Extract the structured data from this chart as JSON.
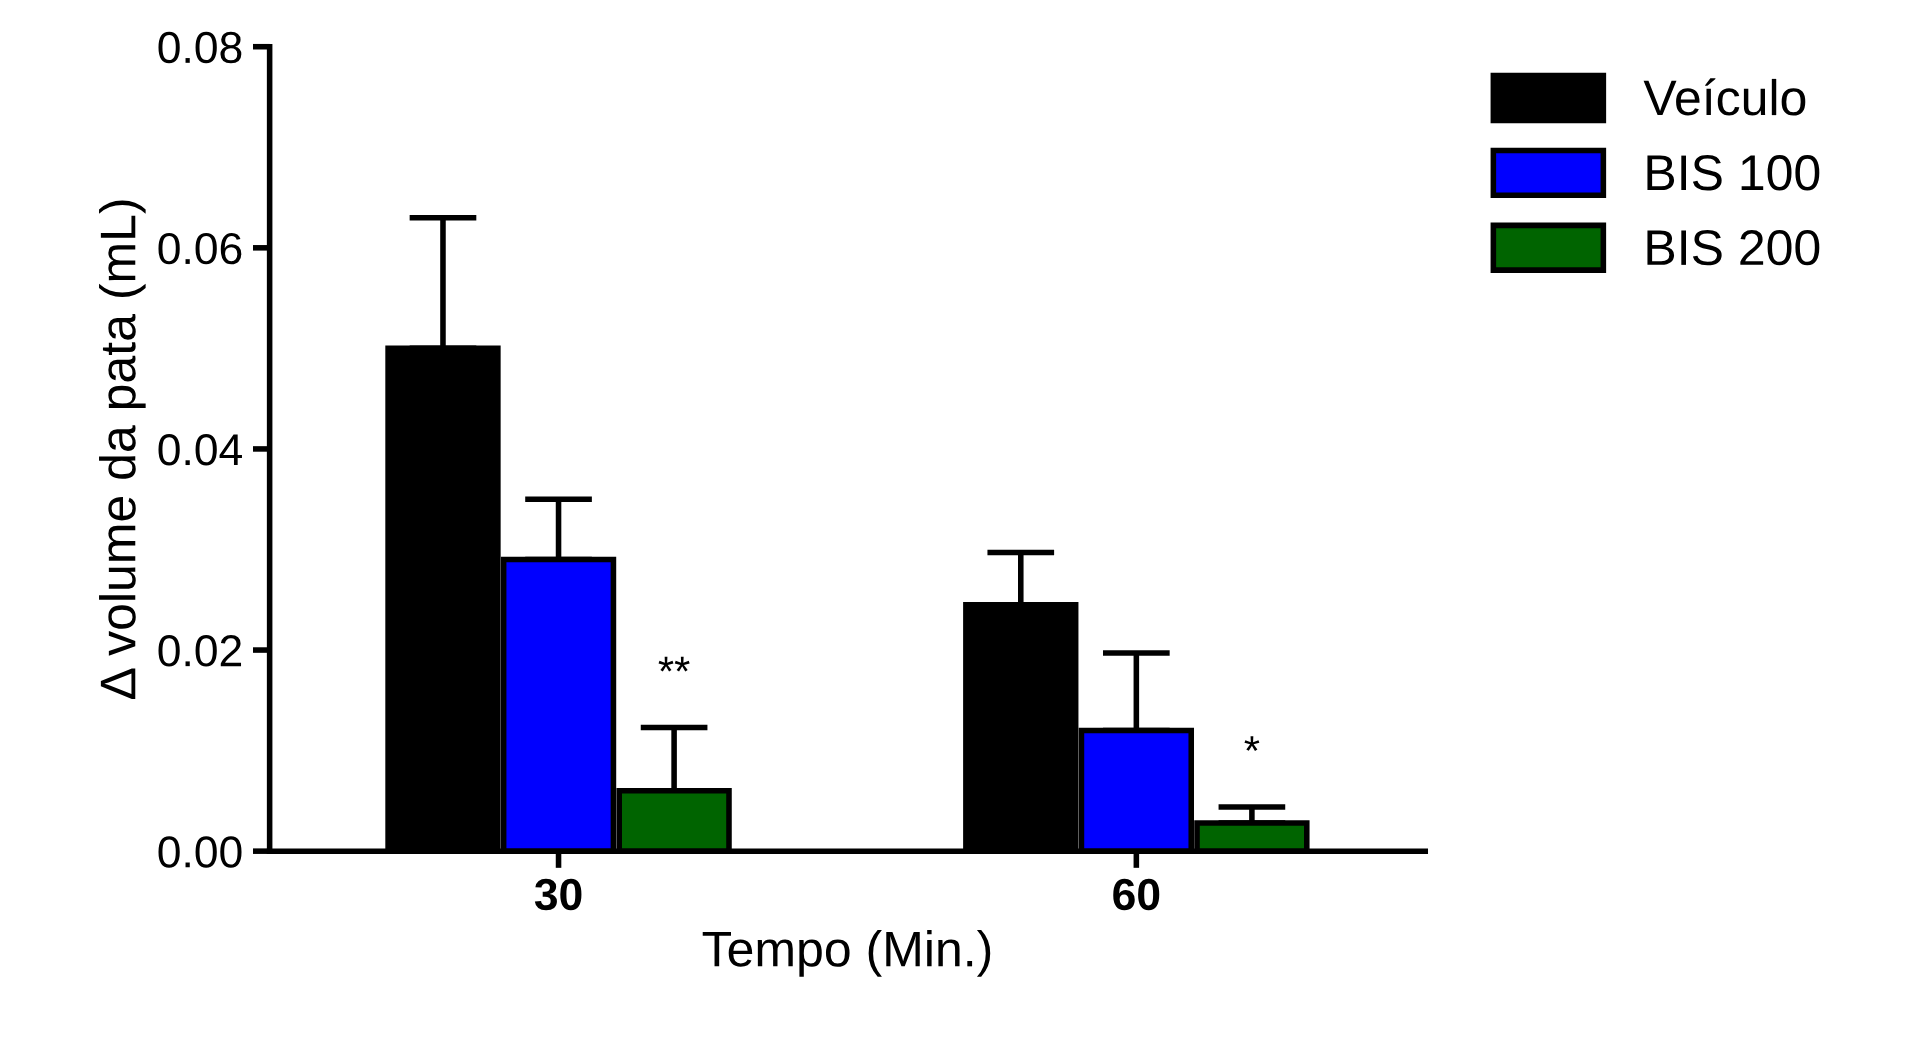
{
  "chart_data": {
    "type": "bar",
    "xlabel": "Tempo (Min.)",
    "ylabel": "Δ volume da pata (mL)",
    "categories": [
      "30",
      "60"
    ],
    "series": [
      {
        "name": "Veículo",
        "color": "#000000",
        "values": [
          0.05,
          0.0245
        ],
        "errors": [
          [
            0.05,
            0.063
          ],
          [
            0.0245,
            0.0297
          ]
        ]
      },
      {
        "name": "BIS 100",
        "color": "#0000ff",
        "values": [
          0.029,
          0.012
        ],
        "errors": [
          [
            0.029,
            0.035
          ],
          [
            0.012,
            0.0197
          ]
        ]
      },
      {
        "name": "BIS 200",
        "color": "#006400",
        "values": [
          0.006,
          0.0028
        ],
        "errors": [
          [
            0.006,
            0.0123
          ],
          [
            0.0028,
            0.0044
          ]
        ]
      }
    ],
    "annotations": [
      "**",
      "*"
    ],
    "ylim": [
      0,
      0.08
    ],
    "yticks": [
      {
        "value": 0,
        "label": "0.00"
      },
      {
        "value": 0.02,
        "label": "0.02"
      },
      {
        "value": 0.04,
        "label": "0.04"
      },
      {
        "value": 0.06,
        "label": "0.06"
      },
      {
        "value": 0.08,
        "label": "0.08"
      }
    ],
    "legend": "right",
    "grid": false
  }
}
